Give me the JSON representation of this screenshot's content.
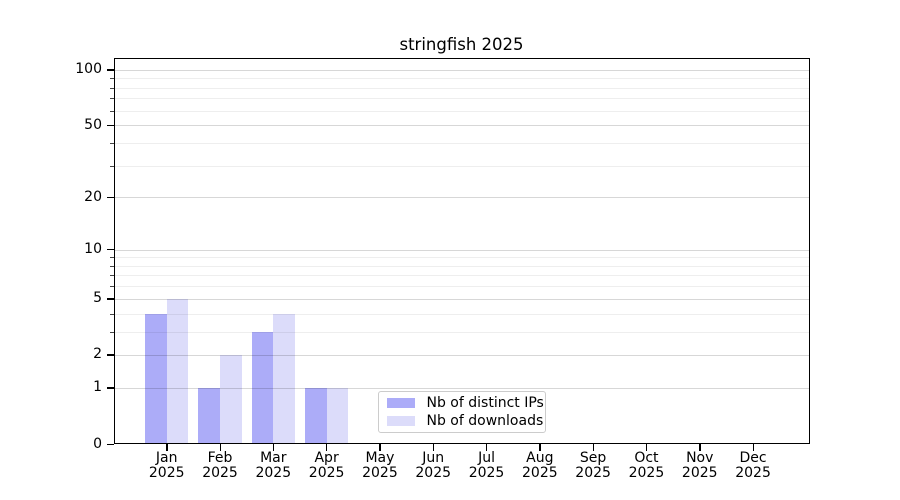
{
  "chart_data": {
    "type": "bar",
    "title": "stringfish 2025",
    "categories": [
      "Jan",
      "Feb",
      "Mar",
      "Apr",
      "May",
      "Jun",
      "Jul",
      "Aug",
      "Sep",
      "Oct",
      "Nov",
      "Dec"
    ],
    "category_year": "2025",
    "series": [
      {
        "name": "Nb of distinct IPs",
        "color": "#acacf8",
        "values": [
          4,
          1,
          3,
          1,
          0,
          0,
          0,
          0,
          0,
          0,
          0,
          0
        ]
      },
      {
        "name": "Nb of downloads",
        "color": "#dcdcfa",
        "values": [
          5,
          2,
          4,
          1,
          0,
          0,
          0,
          0,
          0,
          0,
          0,
          0
        ]
      }
    ],
    "xlabel": "",
    "ylabel": "",
    "yscale": "log1p",
    "ylim": [
      0,
      116
    ],
    "yticks": [
      0,
      1,
      2,
      5,
      10,
      20,
      50,
      100
    ],
    "yminorticks": [
      3,
      4,
      6,
      7,
      8,
      9,
      30,
      40,
      60,
      70,
      80,
      90
    ],
    "grid": "horizontal major+minor, drawn over bars",
    "legend": {
      "position": "inside-bottom-center"
    }
  }
}
